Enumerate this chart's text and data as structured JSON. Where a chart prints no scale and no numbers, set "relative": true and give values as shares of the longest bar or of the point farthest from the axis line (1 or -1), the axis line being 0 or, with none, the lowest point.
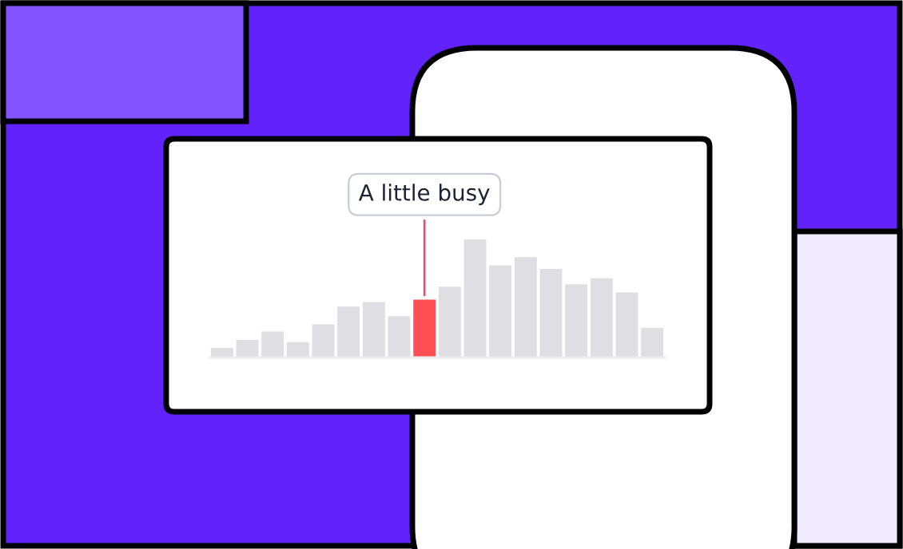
{
  "chart_data": {
    "type": "bar",
    "relative": true,
    "categories": [
      null,
      null,
      null,
      null,
      null,
      null,
      null,
      null,
      null,
      null,
      null,
      null,
      null,
      null,
      null,
      null,
      null,
      null
    ],
    "values": [
      0.08,
      0.15,
      0.22,
      0.13,
      0.28,
      0.43,
      0.47,
      0.35,
      0.49,
      0.6,
      1,
      0.78,
      0.85,
      0.75,
      0.62,
      0.67,
      0.55,
      0.25
    ],
    "colors": [
      "#dedee3",
      "#dedee3",
      "#dedee3",
      "#dedee3",
      "#dedee3",
      "#dedee3",
      "#dedee3",
      "#dedee3",
      "#ff4f55",
      "#dedee3",
      "#dedee3",
      "#dedee3",
      "#dedee3",
      "#dedee3",
      "#dedee3",
      "#dedee3",
      "#dedee3",
      "#dedee3"
    ],
    "annotations": [
      "A little busy"
    ],
    "grid": false,
    "legend": false
  }
}
